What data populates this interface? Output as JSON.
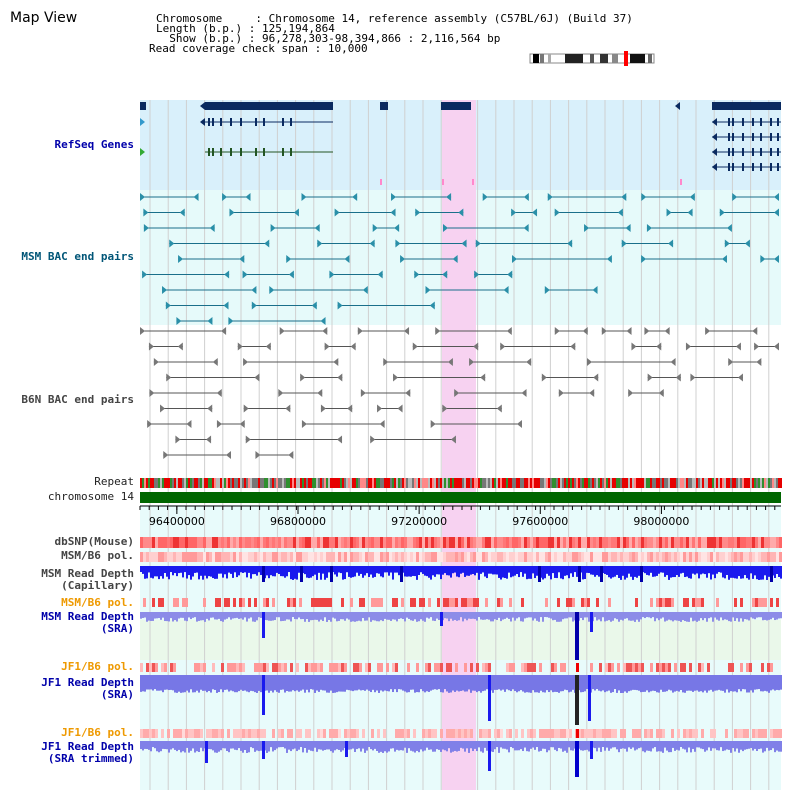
{
  "title": "Map View",
  "info": {
    "chromosome_label": "Chromosome",
    "chromosome_value": "Chromosome 14, reference assembly (C57BL/6J) (Build 37)",
    "length_label": "Length (b.p.)",
    "length_value": "125,194,864",
    "show_label": "Show (b.p.)",
    "show_value": "96,278,303-98,394,866 : 2,116,564 bp",
    "coverage_label": "Read coverage check span",
    "coverage_value": "10,000"
  },
  "tracks": {
    "refseq": "RefSeq Genes",
    "msm_bac": "MSM BAC end pairs",
    "b6n_bac": "B6N BAC end pairs",
    "repeat": "Repeat",
    "chromosome": "chromosome 14",
    "dbsnp": "dbSNP(Mouse)",
    "msm_b6_pol": "MSM/B6 pol.",
    "msm_depth_cap_1": "MSM Read Depth",
    "msm_depth_cap_2": "(Capillary)",
    "msm_b6_pol_2": "MSM/B6 pol.",
    "msm_depth_sra_1": "MSM Read Depth",
    "msm_depth_sra_2": "(SRA)",
    "jf1_b6_pol": "JF1/B6 pol.",
    "jf1_depth_sra_1": "JF1 Read Depth",
    "jf1_depth_sra_2": "(SRA)",
    "jf1_b6_pol_2": "JF1/B6 pol.",
    "jf1_depth_trim_1": "JF1 Read Depth",
    "jf1_depth_trim_2": "(SRA trimmed)"
  },
  "axis": {
    "ticks": [
      "96400000",
      "96800000",
      "97200000",
      "97600000",
      "98000000"
    ]
  },
  "colors": {
    "refseq_bg": "#d9f0fb",
    "msm_bg": "#e6fafa",
    "highlight": "#f7d2f1",
    "gene": "#0a2a60",
    "chromosome": "#006600",
    "depth_dark": "#1a1aee",
    "depth_light": "#8888ee",
    "label_blue": "#0000aa",
    "label_teal": "#005577",
    "label_orange": "#ee9900",
    "label_gray": "#444444"
  }
}
